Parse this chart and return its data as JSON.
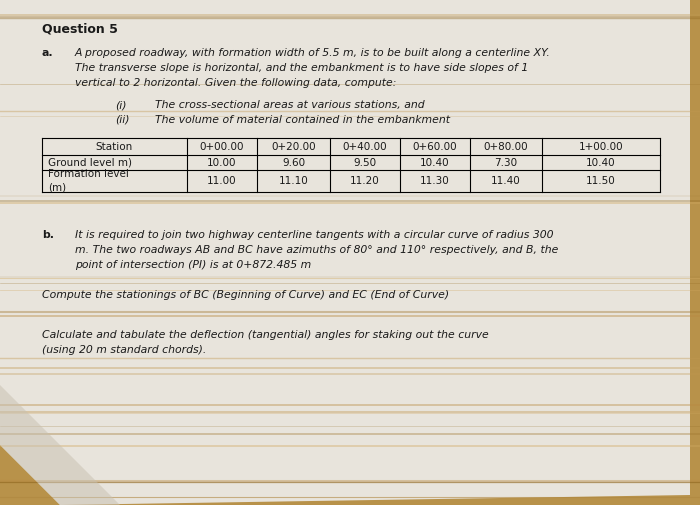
{
  "bg_wood_color": "#b8924a",
  "paper_color": "#e8e4dc",
  "paper_color2": "#ddd8ce",
  "title": "Question 5",
  "part_a_label": "a.",
  "part_a_line1": "A proposed roadway, with formation width of 5.5 m, is to be built along a centerline XY.",
  "part_a_line2": "The transverse slope is horizontal, and the embankment is to have side slopes of 1",
  "part_a_line3": "vertical to 2 horizontal. Given the following data, compute:",
  "item_i_label": "(i)",
  "item_i_text": "The cross-sectional areas at various stations, and",
  "item_ii_label": "(ii)",
  "item_ii_text": "The volume of material contained in the embankment",
  "table_headers": [
    "Station",
    "0+00.00",
    "0+20.00",
    "0+40.00",
    "0+60.00",
    "0+80.00",
    "1+00.00"
  ],
  "table_row1_label": "Ground level m)",
  "table_row1_data": [
    "10.00",
    "9.60",
    "9.50",
    "10.40",
    "7.30",
    "10.40"
  ],
  "table_row2a_label": "Formation level",
  "table_row2b_label": "(m)",
  "table_row2_data": [
    "11.00",
    "11.10",
    "11.20",
    "11.30",
    "11.40",
    "11.50"
  ],
  "part_b_label": "b.",
  "part_b_line1": "It is required to join two highway centerline tangents with a circular curve of radius 300",
  "part_b_line2": "m. The two roadways AB and BC have azimuths of 80° and 110° respectively, and B, the",
  "part_b_line3": "point of intersection (PI) is at 0+872.485 m",
  "part_b_compute": "Compute the stationings of BC (Beginning of Curve) and EC (End of Curve)",
  "part_b_calc1": "Calculate and tabulate the deflection (tangential) angles for staking out the curve",
  "part_b_calc2": "(using 20 m standard chords).",
  "text_color": "#1a1a1a",
  "font_size_title": 9,
  "font_size_body": 7.8,
  "font_size_table": 7.5
}
